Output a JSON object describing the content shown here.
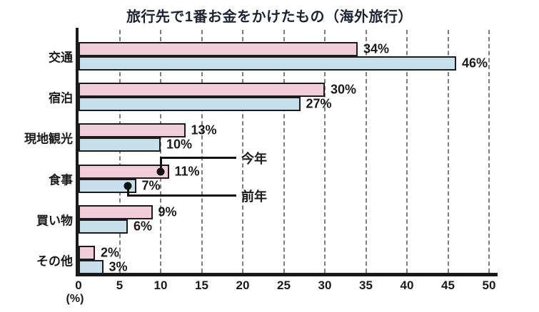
{
  "chart_data": {
    "type": "bar",
    "orientation": "horizontal",
    "title": "旅行先で1番お金をかけたもの（海外旅行）",
    "categories": [
      "交通",
      "宿泊",
      "現地観光",
      "食事",
      "買い物",
      "その他"
    ],
    "series": [
      {
        "name": "今年",
        "color": "#f2ceda",
        "values": [
          34,
          30,
          13,
          11,
          9,
          2
        ]
      },
      {
        "name": "前年",
        "color": "#c7e0ec",
        "values": [
          46,
          27,
          10,
          7,
          6,
          3
        ]
      }
    ],
    "value_labels": [
      [
        "34%",
        "30%",
        "13%",
        "11%",
        "9%",
        "2%"
      ],
      [
        "46%",
        "27%",
        "10%",
        "7%",
        "6%",
        "3%"
      ]
    ],
    "xlabel": "(%)",
    "xlim": [
      0,
      50
    ],
    "xticks": [
      "0",
      "5",
      "10",
      "15",
      "20",
      "25",
      "30",
      "35",
      "40",
      "45",
      "50"
    ],
    "grid": "dashed-vertical",
    "legend_position": "callout-annotations",
    "annotations": [
      {
        "label": "今年",
        "category_index": 3,
        "series_index": 0,
        "x": 10,
        "direction": "up"
      },
      {
        "label": "前年",
        "category_index": 3,
        "series_index": 1,
        "x": 6,
        "direction": "down"
      }
    ],
    "colors": {
      "bar_border": "#1c1c1c",
      "axis": "#1a1a1a",
      "grid": "#7d7d7d",
      "annotation": "#111111"
    }
  }
}
